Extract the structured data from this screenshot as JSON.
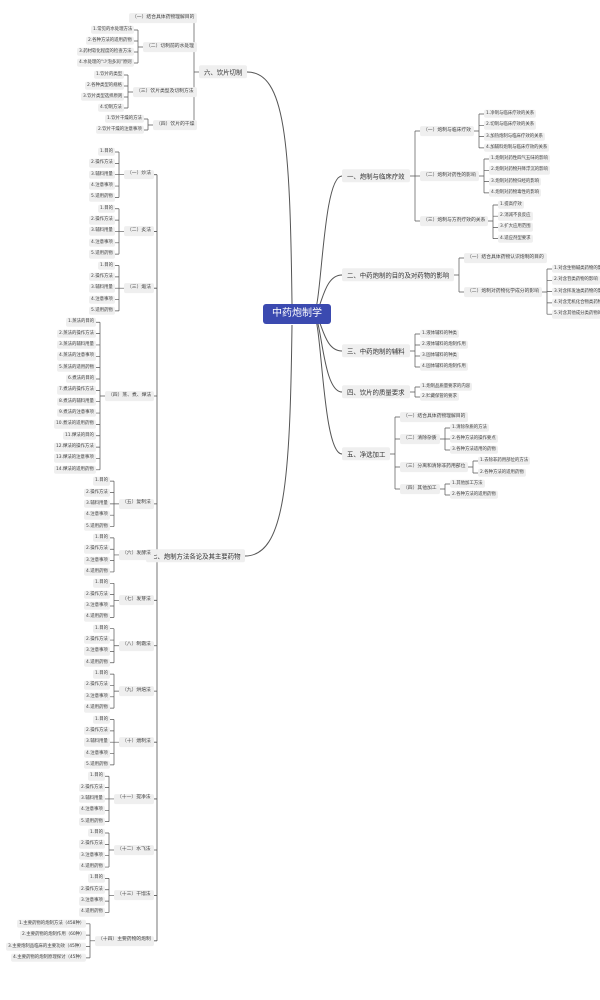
{
  "root": {
    "label": "中药炮制学",
    "color": "#3b4ab0"
  },
  "right_branches": [
    {
      "label": "一、炮制与临床疗效",
      "children": [
        {
          "label": "（一）炮制与临床疗效",
          "items": [
            "1.净制与临床疗效的关系",
            "2.切制与临床疗效的关系",
            "3.加热炮制与临床疗效的关系",
            "4.加辅料炮制与临床疗效的关系"
          ]
        },
        {
          "label": "（二）炮制对药性的影响",
          "items": [
            "1.炮制对药性四气五味的影响",
            "2.炮制对药物升降浮沉的影响",
            "3.炮制对药物归经的影响",
            "4.炮制对药物毒性的影响"
          ]
        },
        {
          "label": "（三）炮制与方剂疗效的关系",
          "items": [
            "1.提高疗效",
            "2.消减不良反应",
            "3.扩大应用范围",
            "4.适应剂型要求"
          ]
        }
      ]
    },
    {
      "label": "二、中药炮制的目的及对药物的影响",
      "children": [
        {
          "label": "（一）结合具体药物认识炮制的目的",
          "items": []
        },
        {
          "label": "（二）炮制对药物化学成分的影响",
          "items": [
            "1.对含生物碱类药物的影响",
            "2.对含苷类药物的影响",
            "3.对含挥发油类药物的影响",
            "4.对含无机化合物类药物的影响",
            "5.对含其他成分类药物的影响"
          ]
        }
      ]
    },
    {
      "label": "三、中药炮制的辅料",
      "items": [
        "1.液体辅料的种类",
        "2.液体辅料的炮制作用",
        "3.固体辅料的种类",
        "4.固体辅料的炮制作用"
      ]
    },
    {
      "label": "四、饮片的质量要求",
      "items": [
        "1.炮制品质量要求的内容",
        "2.贮藏保管的要求"
      ]
    },
    {
      "label": "五、净选加工",
      "children": [
        {
          "label": "（一）结合具体药物理解目的",
          "items": []
        },
        {
          "label": "（二）清除杂质",
          "items": [
            "1.清除杂质的方法",
            "2.各种方法的操作要点",
            "3.各种方法适用的药物"
          ]
        },
        {
          "label": "（三）分离和清除非药用部位",
          "items": [
            "1.去除非药用部位的方法",
            "2.各种方法的适用药物"
          ]
        },
        {
          "label": "（四）其他加工",
          "items": [
            "1.其他加工方法",
            "2.各种方法的适用药物"
          ]
        }
      ]
    }
  ],
  "left_branches": [
    {
      "label": "六、饮片切制",
      "children": [
        {
          "label": "（一）结合具体药物理解目的",
          "items": []
        },
        {
          "label": "（二）切制前的水处理",
          "items": [
            "1.常见的水处理方法",
            "2.各种方法的适用药物",
            "3.药材软化程度的检查方法",
            "4.水处理的“少泡多润”原则"
          ]
        },
        {
          "label": "（三）饮片类型及切制方法",
          "items": [
            "1.饮片的类型",
            "2.各种类型的规格",
            "3.饮片类型选择原则",
            "4.切制方法"
          ]
        },
        {
          "label": "（四）饮片的干燥",
          "items": [
            "1.饮片干燥的方法",
            "2.饮片干燥的注意事项"
          ]
        }
      ]
    },
    {
      "label": "七、炮制方法各论及其主要药物",
      "children": [
        {
          "label": "（一）炒法",
          "items": [
            "1.目的",
            "2.操作方法",
            "3.辅料用量",
            "4.注意事项",
            "5.适用药物"
          ]
        },
        {
          "label": "（二）炙法",
          "items": [
            "1.目的",
            "2.操作方法",
            "3.辅料用量",
            "4.注意事项",
            "5.适用药物"
          ]
        },
        {
          "label": "（三）煅法",
          "items": [
            "1.目的",
            "2.操作方法",
            "3.辅料用量",
            "4.注意事项",
            "5.适用药物"
          ]
        },
        {
          "label": "（四）蒸、煮、燀法",
          "items": [
            "1.蒸法的目的",
            "2.蒸法的操作方法",
            "3.蒸法的辅料用量",
            "4.蒸法的注意事项",
            "5.蒸法的适用药物",
            "6.煮法的目的",
            "7.煮法的操作方法",
            "8.煮法的辅料用量",
            "9.煮法的注意事项",
            "10.煮法的适用药物",
            "11.燀法的目的",
            "12.燀法的操作方法",
            "13.燀法的注意事项",
            "14.燀法的适用药物"
          ]
        },
        {
          "label": "（五）复制法",
          "items": [
            "1.目的",
            "2.操作方法",
            "3.辅料用量",
            "4.注意事项",
            "5.适用药物"
          ]
        },
        {
          "label": "（六）发酵法",
          "items": [
            "1.目的",
            "2.操作方法",
            "3.注意事项",
            "4.适用药物"
          ]
        },
        {
          "label": "（七）发芽法",
          "items": [
            "1.目的",
            "2.操作方法",
            "3.注意事项",
            "4.适用药物"
          ]
        },
        {
          "label": "（八）制霜法",
          "items": [
            "1.目的",
            "2.操作方法",
            "3.注意事项",
            "4.适用药物"
          ]
        },
        {
          "label": "（九）烘焙法",
          "items": [
            "1.目的",
            "2.操作方法",
            "3.注意事项",
            "4.适用药物"
          ]
        },
        {
          "label": "（十）煨制法",
          "items": [
            "1.目的",
            "2.操作方法",
            "3.辅料用量",
            "4.注意事项",
            "5.适用药物"
          ]
        },
        {
          "label": "（十一）提净法",
          "items": [
            "1.目的",
            "2.操作方法",
            "3.辅料用量",
            "4.注意事项",
            "5.适用药物"
          ]
        },
        {
          "label": "（十二）水飞法",
          "items": [
            "1.目的",
            "2.操作方法",
            "3.注意事项",
            "4.适用药物"
          ]
        },
        {
          "label": "（十三）干馏法",
          "items": [
            "1.目的",
            "2.操作方法",
            "3.注意事项",
            "4.适用药物"
          ]
        },
        {
          "label": "（十四）主要药物的炮制",
          "items": [
            "1.主要药物的炮制方法（458种）",
            "2.主要药物的炮制作用（60种）",
            "3.主要炮制品临床的主要功效（45种）",
            "4.主要药物的炮制原理探讨（45种）"
          ]
        }
      ]
    }
  ]
}
